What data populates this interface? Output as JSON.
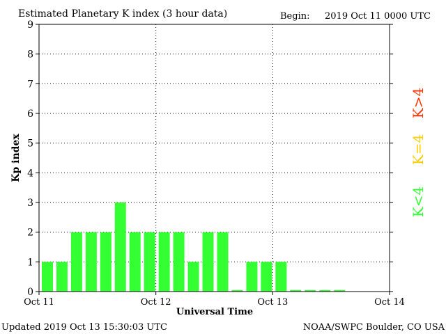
{
  "header": {
    "title": "Estimated Planetary K index (3 hour data)",
    "begin_label": "Begin:",
    "begin_value": "2019 Oct 11 0000 UTC"
  },
  "footer": {
    "updated": "Updated 2019 Oct 13 15:30:03 UTC",
    "source": "NOAA/SWPC Boulder, CO USA"
  },
  "legend": {
    "high": "K>4",
    "mid": "K=4",
    "low": "K<4"
  },
  "colors": {
    "low": "#33ff33",
    "mid": "#ffcc00",
    "high": "#ff3300",
    "grid": "#000000"
  },
  "chart_data": {
    "type": "bar",
    "xlabel": "Universal Time",
    "ylabel": "Kp index",
    "ylim": [
      0,
      9
    ],
    "yticks": [
      "0",
      "1",
      "2",
      "3",
      "4",
      "5",
      "6",
      "7",
      "8",
      "9"
    ],
    "xtick_labels": [
      "Oct 11",
      "Oct 12",
      "Oct 13",
      "Oct 14"
    ],
    "interval_hours": 3,
    "values": [
      1,
      1,
      2,
      2,
      2,
      3,
      2,
      2,
      2,
      2,
      1,
      2,
      2,
      0.05,
      1,
      1,
      1,
      0.05,
      0.05,
      0.05,
      0.05
    ],
    "grid": true,
    "legend_position": "right"
  }
}
